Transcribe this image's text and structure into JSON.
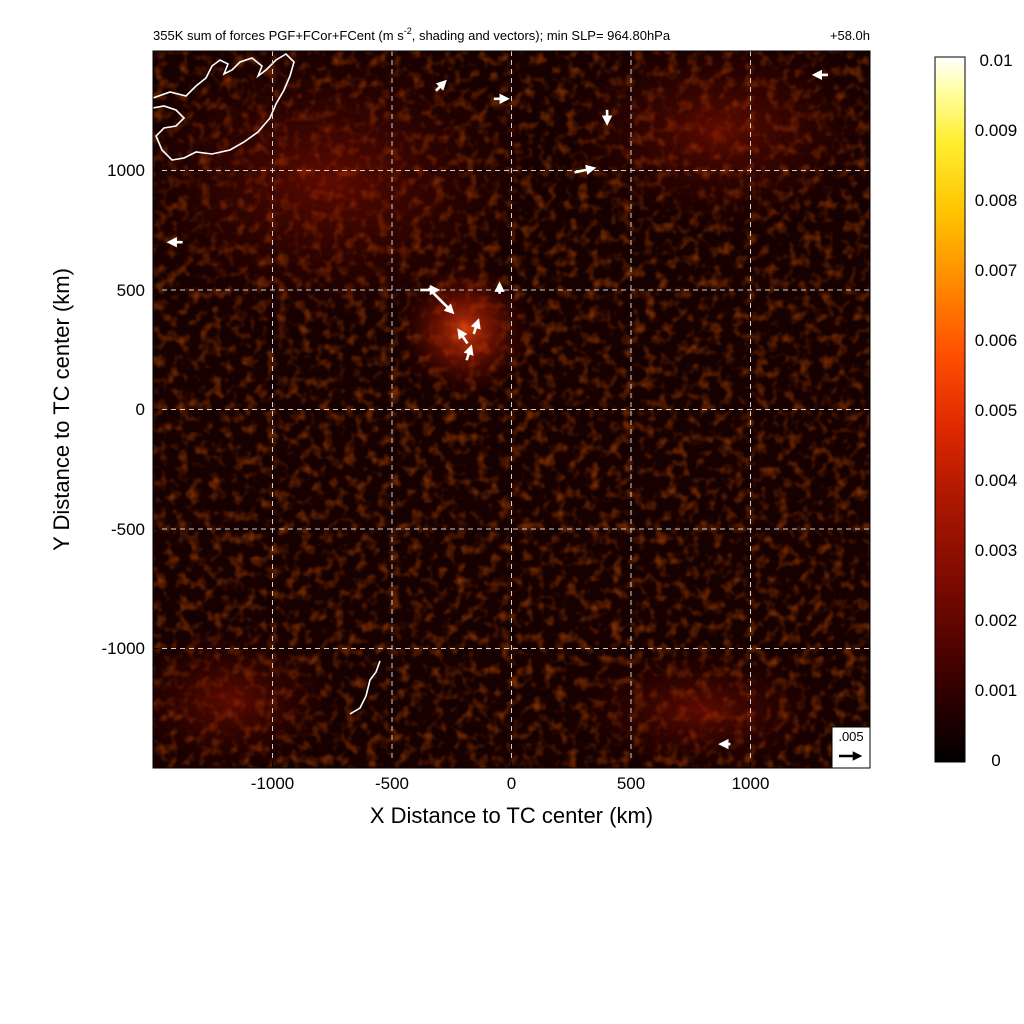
{
  "chart_data": {
    "type": "heatmap",
    "title": "355K sum of forces PGF+FCor+FCent (m s^-2, shading and vectors); min SLP= 964.80hPa",
    "title_prefix": "355K sum of forces PGF+FCor+FCent (m s",
    "title_sup": "-2",
    "title_suffix": ", shading and vectors); min SLP= 964.80hPa",
    "forecast_time": "+58.0h",
    "xlabel": "X Distance to TC center (km)",
    "ylabel": "Y Distance to TC center (km)",
    "xlim": [
      -1500,
      1500
    ],
    "ylim": [
      -1500,
      1500
    ],
    "xticks": [
      -1000,
      -500,
      0,
      500,
      1000
    ],
    "yticks": [
      1000,
      500,
      0,
      -500,
      -1000
    ],
    "xtick_labels": [
      "-1000",
      "-500",
      "0",
      "500",
      "1000"
    ],
    "ytick_labels": [
      "1000",
      "500",
      "0",
      "-500",
      "-1000"
    ],
    "grid": true,
    "colorbar": {
      "min": 0,
      "max": 0.01,
      "ticks": [
        "0.01",
        "0.009",
        "0.008",
        "0.007",
        "0.006",
        "0.005",
        "0.004",
        "0.003",
        "0.002",
        "0.001",
        "0"
      ],
      "colors": [
        "#000000",
        "#3c0000",
        "#7a0a00",
        "#b01800",
        "#e02a00",
        "#ff5000",
        "#ff8a00",
        "#ffc400",
        "#ffee30",
        "#ffffa0",
        "#ffffff"
      ]
    },
    "reference_vector": {
      "value": ".005",
      "units": "m s^-2"
    },
    "storm_center": {
      "x": -200,
      "y": 330
    },
    "vectors": [
      {
        "x": -350,
        "y": 500,
        "u": 0.004,
        "v": 0.0
      },
      {
        "x": -300,
        "y": 460,
        "u": 0.006,
        "v": -0.006
      },
      {
        "x": -200,
        "y": 300,
        "u": -0.002,
        "v": 0.003
      },
      {
        "x": -150,
        "y": 340,
        "u": 0.001,
        "v": 0.003
      },
      {
        "x": -180,
        "y": 230,
        "u": 0.001,
        "v": 0.003
      },
      {
        "x": 300,
        "y": 1000,
        "u": 0.0045,
        "v": 0.001
      },
      {
        "x": -50,
        "y": 1300,
        "u": 0.003,
        "v": 0.0
      },
      {
        "x": 400,
        "y": 1230,
        "u": 0.0,
        "v": -0.003
      },
      {
        "x": -1400,
        "y": 700,
        "u": -0.003,
        "v": 0.0
      },
      {
        "x": 1300,
        "y": 1400,
        "u": -0.003,
        "v": 0.0
      },
      {
        "x": -300,
        "y": 1350,
        "u": 0.002,
        "v": 0.002
      },
      {
        "x": 900,
        "y": -1400,
        "u": -0.002,
        "v": 0.0
      },
      {
        "x": -50,
        "y": 500,
        "u": 0.0,
        "v": 0.002
      }
    ]
  }
}
